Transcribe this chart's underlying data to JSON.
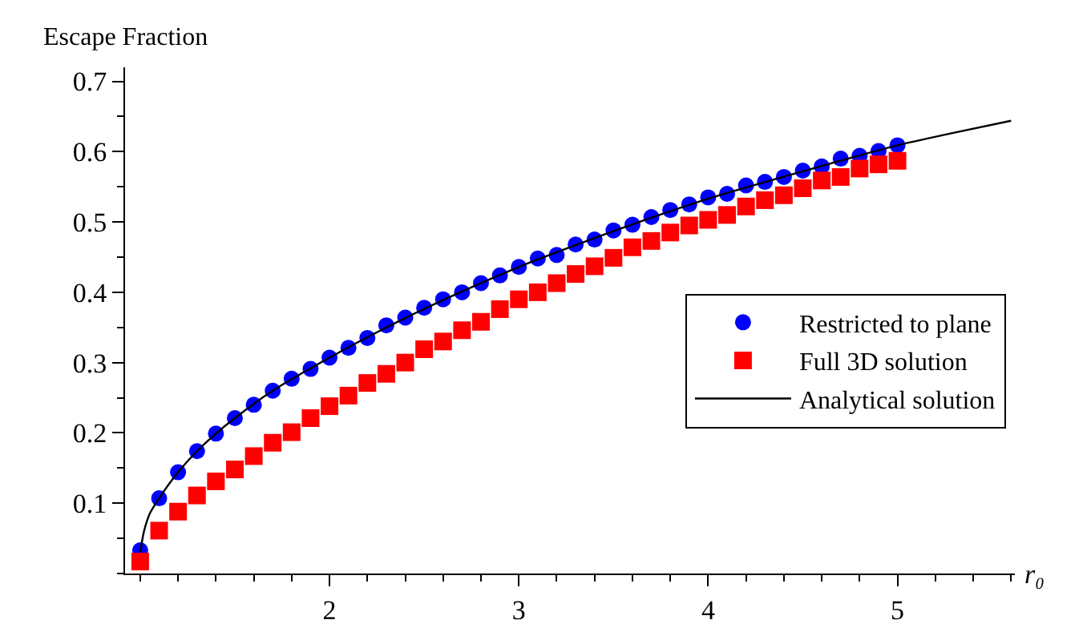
{
  "chart_data": {
    "type": "scatter",
    "xlabel": "r₀",
    "ylabel": "Escape Fraction",
    "xlim": [
      0.92,
      5.62
    ],
    "ylim": [
      0,
      0.72
    ],
    "xticks": [
      2,
      3,
      4,
      5
    ],
    "yticks": [
      0.1,
      0.2,
      0.3,
      0.4,
      0.5,
      0.6,
      0.7
    ],
    "legend": "right",
    "series": [
      {
        "name": "Restricted to plane",
        "color": "#0000ff",
        "marker": "circle",
        "x": [
          1.0,
          1.1,
          1.2,
          1.3,
          1.4,
          1.5,
          1.6,
          1.7,
          1.8,
          1.9,
          2.0,
          2.1,
          2.2,
          2.3,
          2.4,
          2.5,
          2.6,
          2.7,
          2.8,
          2.9,
          3.0,
          3.1,
          3.2,
          3.3,
          3.4,
          3.5,
          3.6,
          3.7,
          3.8,
          3.9,
          4.0,
          4.1,
          4.2,
          4.3,
          4.4,
          4.5,
          4.6,
          4.7,
          4.8,
          4.9,
          5.0
        ],
        "values": [
          0.033,
          0.107,
          0.144,
          0.174,
          0.199,
          0.221,
          0.24,
          0.26,
          0.277,
          0.291,
          0.307,
          0.321,
          0.335,
          0.353,
          0.364,
          0.378,
          0.39,
          0.4,
          0.413,
          0.424,
          0.436,
          0.448,
          0.453,
          0.468,
          0.475,
          0.488,
          0.496,
          0.507,
          0.517,
          0.525,
          0.535,
          0.54,
          0.552,
          0.557,
          0.564,
          0.573,
          0.579,
          0.59,
          0.594,
          0.601,
          0.609
        ]
      },
      {
        "name": "Full 3D solution",
        "color": "#ff0000",
        "marker": "square",
        "x": [
          1.0,
          1.1,
          1.2,
          1.3,
          1.4,
          1.5,
          1.6,
          1.7,
          1.8,
          1.9,
          2.0,
          2.1,
          2.2,
          2.3,
          2.4,
          2.5,
          2.6,
          2.7,
          2.8,
          2.9,
          3.0,
          3.1,
          3.2,
          3.3,
          3.4,
          3.5,
          3.6,
          3.7,
          3.8,
          3.9,
          4.0,
          4.1,
          4.2,
          4.3,
          4.4,
          4.5,
          4.6,
          4.7,
          4.8,
          4.9,
          5.0
        ],
        "values": [
          0.017,
          0.061,
          0.088,
          0.111,
          0.131,
          0.148,
          0.167,
          0.186,
          0.201,
          0.221,
          0.238,
          0.253,
          0.271,
          0.284,
          0.3,
          0.319,
          0.33,
          0.346,
          0.358,
          0.376,
          0.39,
          0.4,
          0.413,
          0.426,
          0.437,
          0.449,
          0.464,
          0.473,
          0.485,
          0.495,
          0.503,
          0.51,
          0.522,
          0.531,
          0.538,
          0.548,
          0.559,
          0.564,
          0.576,
          0.582,
          0.587
        ]
      },
      {
        "name": "Analytical solution",
        "type": "line",
        "color": "#000000",
        "marker": "none",
        "line_style": "solid",
        "x": [
          1.0,
          1.02,
          1.05,
          1.1,
          1.2,
          1.3,
          1.4,
          1.5,
          1.7,
          2.0,
          2.3,
          2.6,
          3.0,
          3.5,
          4.0,
          4.5,
          5.0,
          5.3,
          5.6
        ],
        "values": [
          0.03,
          0.06,
          0.085,
          0.107,
          0.144,
          0.174,
          0.199,
          0.221,
          0.26,
          0.307,
          0.35,
          0.389,
          0.436,
          0.487,
          0.533,
          0.572,
          0.609,
          0.627,
          0.644
        ]
      }
    ]
  }
}
